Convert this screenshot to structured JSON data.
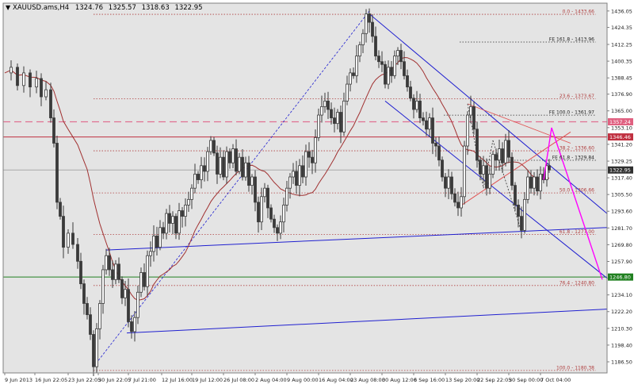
{
  "chart_data": {
    "type": "candlestick",
    "symbol_label": "XAUUSD.ams,H4",
    "ohlc_header": [
      "1324.76",
      "1325.57",
      "1318.63",
      "1322.95"
    ],
    "ylim": [
      1178.6,
      1441.6
    ],
    "y_ticks": [
      "1436.05",
      "1424.35",
      "1412.25",
      "1400.35",
      "1388.45",
      "1376.90",
      "1365.00",
      "1353.10",
      "1341.20",
      "1329.25",
      "1317.40",
      "1305.50",
      "1293.60",
      "1281.70",
      "1269.80",
      "1257.90",
      "1246.00",
      "1234.10",
      "1222.20",
      "1210.30",
      "1198.40",
      "1186.50"
    ],
    "x_labels": [
      "9 Jun 2013",
      "16 Jun 22:05",
      "23 Jun 22:05",
      "30 Jun 22:05",
      "7 Jul 21:00",
      "12 Jul 16:00",
      "19 Jul 12:00",
      "26 Jul 08:00",
      "2 Aug 04:00",
      "9 Aug 00:00",
      "16 Aug 04:00",
      "23 Aug 08:00",
      "30 Aug 12:00",
      "6 Sep 16:00",
      "13 Sep 20:00",
      "22 Sep 22:05",
      "30 Sep 00:00",
      "7 Oct 04:00"
    ],
    "price_labels": [
      {
        "value": 1357.24,
        "text": "1357.24",
        "color": "#e06080"
      },
      {
        "value": 1346.46,
        "text": "1346.46",
        "color": "#c03040"
      },
      {
        "value": 1322.95,
        "text": "1322.95",
        "color": "#303030"
      },
      {
        "value": 1246.8,
        "text": "1246.80",
        "color": "#208020"
      }
    ],
    "fib_levels": [
      {
        "value": 1433.66,
        "text": "0.0 - 1433.66"
      },
      {
        "value": 1373.67,
        "text": "23.6 - 1373.67"
      },
      {
        "value": 1336.6,
        "text": "38.2 - 1336.60"
      },
      {
        "value": 1306.66,
        "text": "50.0 - 1306.66"
      },
      {
        "value": 1277.0,
        "text": "61.8 - 1277.00"
      },
      {
        "value": 1240.8,
        "text": "76.4 - 1240.80"
      },
      {
        "value": 1180.38,
        "text": "100.0 - 1180.38"
      }
    ],
    "fe_levels": [
      {
        "value": 1413.96,
        "text": "FE 161.8 - 1413.96"
      },
      {
        "value": 1361.97,
        "text": "FE 100.0 - 1361.97"
      },
      {
        "value": 1329.84,
        "text": "FE 61.8 - 1329.84"
      }
    ],
    "colors": {
      "background": "#ffffff",
      "plot_bg": "#e4e4e4",
      "candle": "#3a3a3a",
      "moving_average": "#a03030",
      "channel": "#2020d0",
      "forecast": "#ff00ff",
      "fib_dotted": "#b04040",
      "fe_dotted": "#303030",
      "horizontal_red": "#c03040",
      "horizontal_pink": "#e07090",
      "horizontal_green": "#208020",
      "grey_line": "#a8a8a8"
    }
  }
}
